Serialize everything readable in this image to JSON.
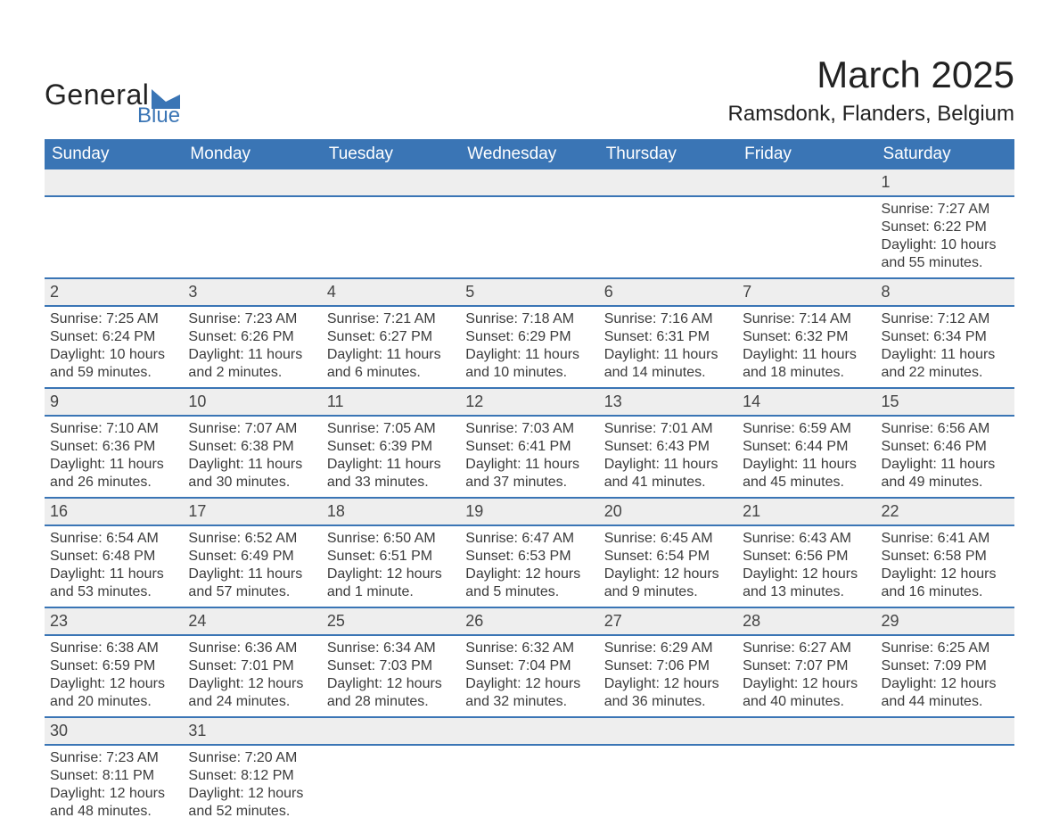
{
  "logo": {
    "text1": "General",
    "text2": "Blue",
    "flag_color": "#3a75b5"
  },
  "title": "March 2025",
  "location": "Ramsdonk, Flanders, Belgium",
  "colors": {
    "header_bg": "#3a75b5",
    "header_text": "#ffffff",
    "daynum_bg": "#eeeeee",
    "row_border": "#3a75b5",
    "body_text": "#3b3b3b",
    "background": "#ffffff"
  },
  "typography": {
    "title_fontsize": 42,
    "location_fontsize": 24,
    "header_fontsize": 19,
    "cell_fontsize": 16,
    "daynum_fontsize": 18,
    "font_family": "Arial"
  },
  "layout": {
    "columns": 7,
    "rows": 6
  },
  "day_headers": [
    "Sunday",
    "Monday",
    "Tuesday",
    "Wednesday",
    "Thursday",
    "Friday",
    "Saturday"
  ],
  "weeks": [
    [
      null,
      null,
      null,
      null,
      null,
      null,
      {
        "n": "1",
        "sr": "Sunrise: 7:27 AM",
        "ss": "Sunset: 6:22 PM",
        "dl": "Daylight: 10 hours and 55 minutes."
      }
    ],
    [
      {
        "n": "2",
        "sr": "Sunrise: 7:25 AM",
        "ss": "Sunset: 6:24 PM",
        "dl": "Daylight: 10 hours and 59 minutes."
      },
      {
        "n": "3",
        "sr": "Sunrise: 7:23 AM",
        "ss": "Sunset: 6:26 PM",
        "dl": "Daylight: 11 hours and 2 minutes."
      },
      {
        "n": "4",
        "sr": "Sunrise: 7:21 AM",
        "ss": "Sunset: 6:27 PM",
        "dl": "Daylight: 11 hours and 6 minutes."
      },
      {
        "n": "5",
        "sr": "Sunrise: 7:18 AM",
        "ss": "Sunset: 6:29 PM",
        "dl": "Daylight: 11 hours and 10 minutes."
      },
      {
        "n": "6",
        "sr": "Sunrise: 7:16 AM",
        "ss": "Sunset: 6:31 PM",
        "dl": "Daylight: 11 hours and 14 minutes."
      },
      {
        "n": "7",
        "sr": "Sunrise: 7:14 AM",
        "ss": "Sunset: 6:32 PM",
        "dl": "Daylight: 11 hours and 18 minutes."
      },
      {
        "n": "8",
        "sr": "Sunrise: 7:12 AM",
        "ss": "Sunset: 6:34 PM",
        "dl": "Daylight: 11 hours and 22 minutes."
      }
    ],
    [
      {
        "n": "9",
        "sr": "Sunrise: 7:10 AM",
        "ss": "Sunset: 6:36 PM",
        "dl": "Daylight: 11 hours and 26 minutes."
      },
      {
        "n": "10",
        "sr": "Sunrise: 7:07 AM",
        "ss": "Sunset: 6:38 PM",
        "dl": "Daylight: 11 hours and 30 minutes."
      },
      {
        "n": "11",
        "sr": "Sunrise: 7:05 AM",
        "ss": "Sunset: 6:39 PM",
        "dl": "Daylight: 11 hours and 33 minutes."
      },
      {
        "n": "12",
        "sr": "Sunrise: 7:03 AM",
        "ss": "Sunset: 6:41 PM",
        "dl": "Daylight: 11 hours and 37 minutes."
      },
      {
        "n": "13",
        "sr": "Sunrise: 7:01 AM",
        "ss": "Sunset: 6:43 PM",
        "dl": "Daylight: 11 hours and 41 minutes."
      },
      {
        "n": "14",
        "sr": "Sunrise: 6:59 AM",
        "ss": "Sunset: 6:44 PM",
        "dl": "Daylight: 11 hours and 45 minutes."
      },
      {
        "n": "15",
        "sr": "Sunrise: 6:56 AM",
        "ss": "Sunset: 6:46 PM",
        "dl": "Daylight: 11 hours and 49 minutes."
      }
    ],
    [
      {
        "n": "16",
        "sr": "Sunrise: 6:54 AM",
        "ss": "Sunset: 6:48 PM",
        "dl": "Daylight: 11 hours and 53 minutes."
      },
      {
        "n": "17",
        "sr": "Sunrise: 6:52 AM",
        "ss": "Sunset: 6:49 PM",
        "dl": "Daylight: 11 hours and 57 minutes."
      },
      {
        "n": "18",
        "sr": "Sunrise: 6:50 AM",
        "ss": "Sunset: 6:51 PM",
        "dl": "Daylight: 12 hours and 1 minute."
      },
      {
        "n": "19",
        "sr": "Sunrise: 6:47 AM",
        "ss": "Sunset: 6:53 PM",
        "dl": "Daylight: 12 hours and 5 minutes."
      },
      {
        "n": "20",
        "sr": "Sunrise: 6:45 AM",
        "ss": "Sunset: 6:54 PM",
        "dl": "Daylight: 12 hours and 9 minutes."
      },
      {
        "n": "21",
        "sr": "Sunrise: 6:43 AM",
        "ss": "Sunset: 6:56 PM",
        "dl": "Daylight: 12 hours and 13 minutes."
      },
      {
        "n": "22",
        "sr": "Sunrise: 6:41 AM",
        "ss": "Sunset: 6:58 PM",
        "dl": "Daylight: 12 hours and 16 minutes."
      }
    ],
    [
      {
        "n": "23",
        "sr": "Sunrise: 6:38 AM",
        "ss": "Sunset: 6:59 PM",
        "dl": "Daylight: 12 hours and 20 minutes."
      },
      {
        "n": "24",
        "sr": "Sunrise: 6:36 AM",
        "ss": "Sunset: 7:01 PM",
        "dl": "Daylight: 12 hours and 24 minutes."
      },
      {
        "n": "25",
        "sr": "Sunrise: 6:34 AM",
        "ss": "Sunset: 7:03 PM",
        "dl": "Daylight: 12 hours and 28 minutes."
      },
      {
        "n": "26",
        "sr": "Sunrise: 6:32 AM",
        "ss": "Sunset: 7:04 PM",
        "dl": "Daylight: 12 hours and 32 minutes."
      },
      {
        "n": "27",
        "sr": "Sunrise: 6:29 AM",
        "ss": "Sunset: 7:06 PM",
        "dl": "Daylight: 12 hours and 36 minutes."
      },
      {
        "n": "28",
        "sr": "Sunrise: 6:27 AM",
        "ss": "Sunset: 7:07 PM",
        "dl": "Daylight: 12 hours and 40 minutes."
      },
      {
        "n": "29",
        "sr": "Sunrise: 6:25 AM",
        "ss": "Sunset: 7:09 PM",
        "dl": "Daylight: 12 hours and 44 minutes."
      }
    ],
    [
      {
        "n": "30",
        "sr": "Sunrise: 7:23 AM",
        "ss": "Sunset: 8:11 PM",
        "dl": "Daylight: 12 hours and 48 minutes."
      },
      {
        "n": "31",
        "sr": "Sunrise: 7:20 AM",
        "ss": "Sunset: 8:12 PM",
        "dl": "Daylight: 12 hours and 52 minutes."
      },
      null,
      null,
      null,
      null,
      null
    ]
  ]
}
